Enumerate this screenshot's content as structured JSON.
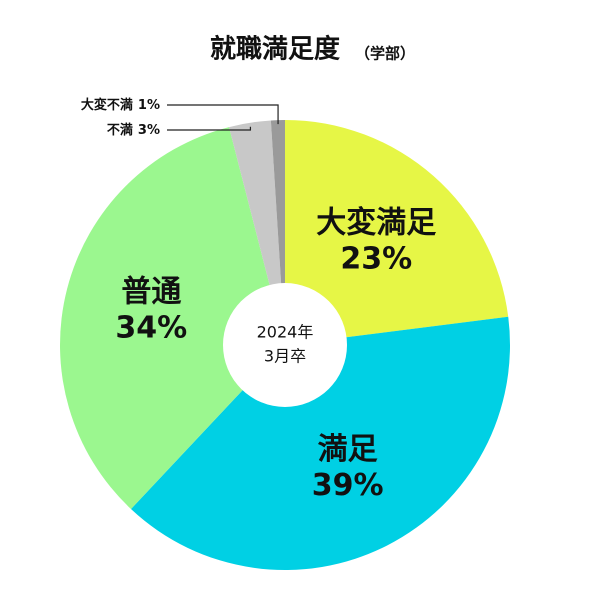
{
  "chart_data": {
    "type": "donut",
    "title": "就職満足度",
    "subtitle": "（学部）",
    "center_text": [
      "2024年",
      "3月卒"
    ],
    "categories": [
      "大変満足",
      "満足",
      "普通",
      "不満",
      "大変不満"
    ],
    "values": [
      23,
      39,
      34,
      3,
      1
    ],
    "value_labels": [
      "23%",
      "39%",
      "34%",
      "3%",
      "1%"
    ],
    "colors": [
      "#e6f646",
      "#00d0e4",
      "#9bf78f",
      "#c8c8c8",
      "#9a9a9a"
    ]
  }
}
